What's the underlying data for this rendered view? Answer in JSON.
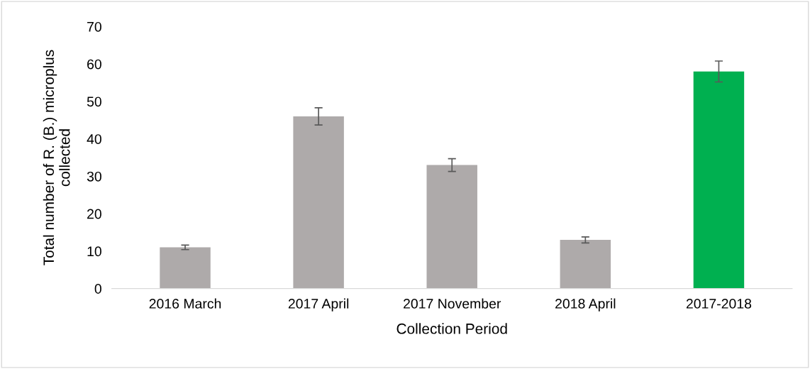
{
  "chart_data": {
    "type": "bar",
    "categories": [
      "2016 March",
      "2017 April",
      "2017 November",
      "2018 April",
      "2017-2018"
    ],
    "values": [
      11,
      46,
      33,
      13,
      58
    ],
    "errors": [
      0.6,
      2.3,
      1.7,
      0.8,
      2.8
    ],
    "colors": [
      "#aeaaaa",
      "#aeaaaa",
      "#aeaaaa",
      "#aeaaaa",
      "#00b050"
    ],
    "xlabel": "Collection Period",
    "ylabel": "Total number of R. (B.) microplus\ncollected",
    "ylim": [
      0,
      70
    ],
    "yticks": [
      0,
      10,
      20,
      30,
      40,
      50,
      60,
      70
    ],
    "grid": false
  }
}
